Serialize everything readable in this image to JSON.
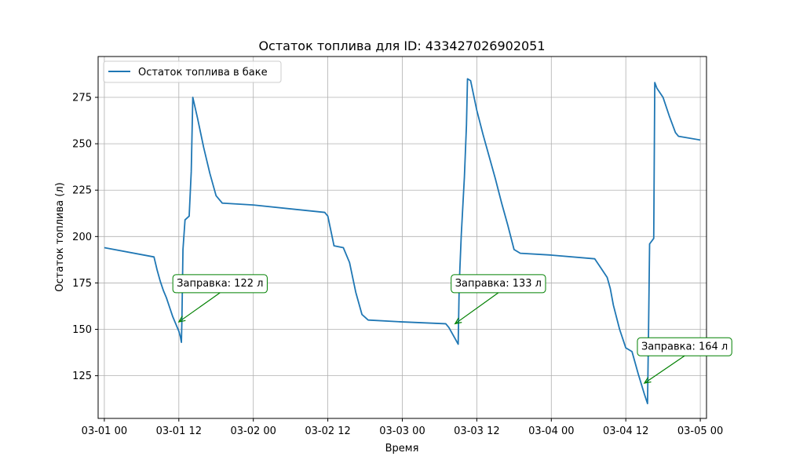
{
  "chart_data": {
    "type": "line",
    "title": "Остаток топлива для ID: 433427026902051",
    "xlabel": "Время",
    "ylabel": "Остаток топлива (л)",
    "xlim": [
      "2024-02-29T23:00",
      "2024-03-05T01:00"
    ],
    "ylim": [
      102,
      297
    ],
    "x_ticks": [
      {
        "t": "2024-03-01T00:00",
        "label": "03-01 00"
      },
      {
        "t": "2024-03-01T12:00",
        "label": "03-01 12"
      },
      {
        "t": "2024-03-02T00:00",
        "label": "03-02 00"
      },
      {
        "t": "2024-03-02T12:00",
        "label": "03-02 12"
      },
      {
        "t": "2024-03-03T00:00",
        "label": "03-03 00"
      },
      {
        "t": "2024-03-03T12:00",
        "label": "03-03 12"
      },
      {
        "t": "2024-03-04T00:00",
        "label": "03-04 00"
      },
      {
        "t": "2024-03-04T12:00",
        "label": "03-04 12"
      },
      {
        "t": "2024-03-05T00:00",
        "label": "03-05 00"
      }
    ],
    "y_ticks": [
      125,
      150,
      175,
      200,
      225,
      250,
      275
    ],
    "grid": true,
    "legend_position": "top-left",
    "color": "#1f77b4",
    "annotation_color": "#008000",
    "series": [
      {
        "name": "Остаток топлива в баке",
        "points": [
          [
            "2024-03-01T00:00",
            194
          ],
          [
            "2024-03-01T08:00",
            189
          ],
          [
            "2024-03-01T08:30",
            182
          ],
          [
            "2024-03-01T09:00",
            176
          ],
          [
            "2024-03-01T09:30",
            171
          ],
          [
            "2024-03-01T10:00",
            167
          ],
          [
            "2024-03-01T10:30",
            162
          ],
          [
            "2024-03-01T11:00",
            157
          ],
          [
            "2024-03-01T11:30",
            153
          ],
          [
            "2024-03-01T12:00",
            149
          ],
          [
            "2024-03-01T12:15",
            146
          ],
          [
            "2024-03-01T12:25",
            143
          ],
          [
            "2024-03-01T12:30",
            156
          ],
          [
            "2024-03-01T12:40",
            193
          ],
          [
            "2024-03-01T13:00",
            209
          ],
          [
            "2024-03-01T13:40",
            211
          ],
          [
            "2024-03-01T14:00",
            235
          ],
          [
            "2024-03-01T14:15",
            275
          ],
          [
            "2024-03-01T15:00",
            264
          ],
          [
            "2024-03-01T16:00",
            248
          ],
          [
            "2024-03-01T17:00",
            234
          ],
          [
            "2024-03-01T18:00",
            222
          ],
          [
            "2024-03-01T19:00",
            218
          ],
          [
            "2024-03-02T00:00",
            217
          ],
          [
            "2024-03-02T11:30",
            213
          ],
          [
            "2024-03-02T12:00",
            211
          ],
          [
            "2024-03-02T12:30",
            203
          ],
          [
            "2024-03-02T13:00",
            195
          ],
          [
            "2024-03-02T14:30",
            194
          ],
          [
            "2024-03-02T15:30",
            186
          ],
          [
            "2024-03-02T16:30",
            170
          ],
          [
            "2024-03-02T17:30",
            158
          ],
          [
            "2024-03-02T18:30",
            155
          ],
          [
            "2024-03-03T00:00",
            154
          ],
          [
            "2024-03-03T07:00",
            153
          ],
          [
            "2024-03-03T07:30",
            151
          ],
          [
            "2024-03-03T08:30",
            145
          ],
          [
            "2024-03-03T09:00",
            142
          ],
          [
            "2024-03-03T09:10",
            174
          ],
          [
            "2024-03-03T09:30",
            201
          ],
          [
            "2024-03-03T10:00",
            232
          ],
          [
            "2024-03-03T10:20",
            260
          ],
          [
            "2024-03-03T10:30",
            285
          ],
          [
            "2024-03-03T11:00",
            284
          ],
          [
            "2024-03-03T12:00",
            268
          ],
          [
            "2024-03-03T13:00",
            255
          ],
          [
            "2024-03-03T14:00",
            243
          ],
          [
            "2024-03-03T15:00",
            231
          ],
          [
            "2024-03-03T16:00",
            218
          ],
          [
            "2024-03-03T17:00",
            206
          ],
          [
            "2024-03-03T18:00",
            193
          ],
          [
            "2024-03-03T19:00",
            191
          ],
          [
            "2024-03-04T00:00",
            190
          ],
          [
            "2024-03-04T07:00",
            188
          ],
          [
            "2024-03-04T08:00",
            183
          ],
          [
            "2024-03-04T09:00",
            178
          ],
          [
            "2024-03-04T09:30",
            172
          ],
          [
            "2024-03-04T10:00",
            163
          ],
          [
            "2024-03-04T11:00",
            150
          ],
          [
            "2024-03-04T12:00",
            140
          ],
          [
            "2024-03-04T13:00",
            138
          ],
          [
            "2024-03-04T14:00",
            126
          ],
          [
            "2024-03-04T15:00",
            115
          ],
          [
            "2024-03-04T15:30",
            110
          ],
          [
            "2024-03-04T15:40",
            150
          ],
          [
            "2024-03-04T15:50",
            196
          ],
          [
            "2024-03-04T16:30",
            199
          ],
          [
            "2024-03-04T16:40",
            283
          ],
          [
            "2024-03-04T17:00",
            280
          ],
          [
            "2024-03-04T18:00",
            275
          ],
          [
            "2024-03-04T19:00",
            265
          ],
          [
            "2024-03-04T20:00",
            256
          ],
          [
            "2024-03-04T20:30",
            254
          ],
          [
            "2024-03-05T00:00",
            252
          ]
        ]
      }
    ],
    "annotations": [
      {
        "text": "Заправка: 122 л",
        "label_t": "2024-03-01T11:40",
        "label_v": 175,
        "point_t": "2024-03-01T12:00",
        "point_v": 154
      },
      {
        "text": "Заправка: 133 л",
        "label_t": "2024-03-03T08:30",
        "label_v": 175,
        "point_t": "2024-03-03T08:30",
        "point_v": 153
      },
      {
        "text": "Заправка: 164 л",
        "label_t": "2024-03-04T14:30",
        "label_v": 141,
        "point_t": "2024-03-04T15:00",
        "point_v": 121
      }
    ]
  }
}
